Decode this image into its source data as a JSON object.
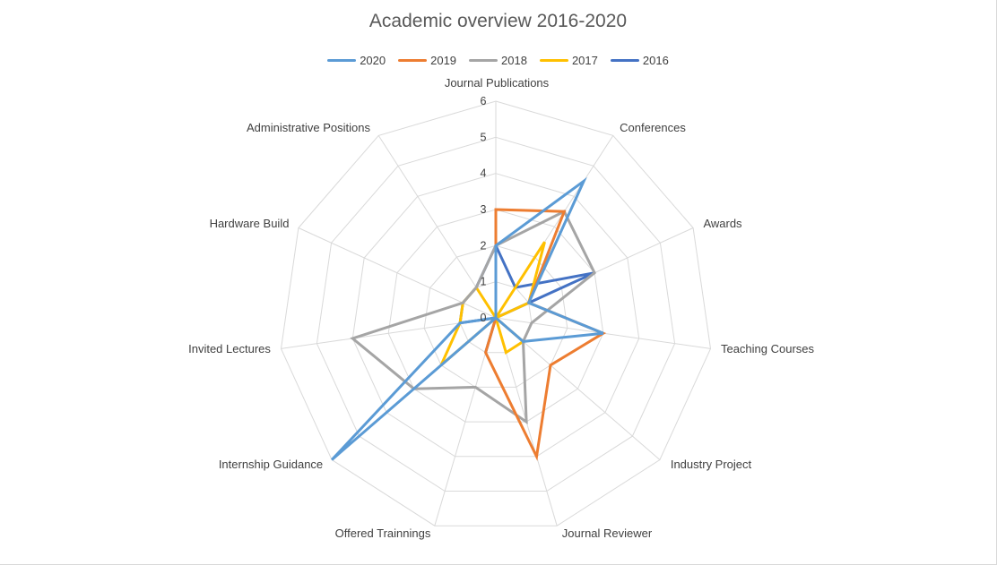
{
  "chart_data": {
    "type": "radar",
    "title": "Academic overview 2016-2020",
    "categories": [
      "Journal Publications",
      "Conferences",
      "Awards",
      "Teaching Courses",
      "Industry Project",
      "Journal Reviewer",
      "Offered Trainnings",
      "Internship Guidance",
      "Invited Lectures",
      "Hardware Build",
      "Administrative Positions"
    ],
    "rlim": [
      0,
      6
    ],
    "ticks": [
      "0",
      "1",
      "2",
      "3",
      "4",
      "5",
      "6"
    ],
    "legend_position": "top",
    "grid": true,
    "series": [
      {
        "name": "2020",
        "color": "#5B9BD5",
        "values": [
          2,
          4.5,
          1,
          3,
          1,
          0,
          0,
          6,
          1,
          0,
          0
        ]
      },
      {
        "name": "2019",
        "color": "#ED7D31",
        "values": [
          3,
          3.5,
          1,
          3,
          2,
          4,
          1,
          0,
          0,
          0,
          0
        ]
      },
      {
        "name": "2018",
        "color": "#A5A5A5",
        "values": [
          2,
          3.5,
          3,
          1,
          1,
          3,
          2,
          3,
          4,
          1,
          1
        ]
      },
      {
        "name": "2017",
        "color": "#FFC000",
        "values": [
          0,
          2.5,
          1,
          0,
          1,
          1,
          0,
          2,
          1,
          1,
          1
        ]
      },
      {
        "name": "2016",
        "color": "#4472C4",
        "values": [
          2,
          1,
          3,
          0,
          0,
          0,
          1,
          0,
          1,
          1,
          1
        ]
      }
    ]
  }
}
